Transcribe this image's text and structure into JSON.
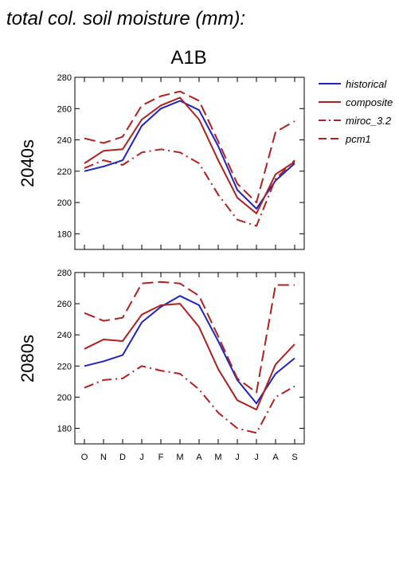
{
  "title": "total col. soil moisture (mm):",
  "scenario": "A1B",
  "colors": {
    "historical": "#2222bb",
    "models": "#aa2222"
  },
  "legend": [
    {
      "key": "historical",
      "label": "historical",
      "style": "solid",
      "color": "#2222bb"
    },
    {
      "key": "composite",
      "label": "composite",
      "style": "solid",
      "color": "#aa2222"
    },
    {
      "key": "miroc",
      "label": "miroc_3.2",
      "style": "dashdot",
      "color": "#aa2222"
    },
    {
      "key": "pcm1",
      "label": "pcm1",
      "style": "dashed",
      "color": "#aa2222"
    }
  ],
  "chart_data": [
    {
      "type": "line",
      "row_label": "2040s",
      "x": [
        "O",
        "N",
        "D",
        "J",
        "F",
        "M",
        "A",
        "M",
        "J",
        "J",
        "A",
        "S"
      ],
      "ylim": [
        170,
        280
      ],
      "yticks": [
        180,
        200,
        220,
        240,
        260,
        280
      ],
      "series": [
        {
          "name": "historical",
          "values": [
            220,
            223,
            227,
            249,
            260,
            265,
            259,
            236,
            208,
            196,
            214,
            225
          ]
        },
        {
          "name": "composite",
          "values": [
            225,
            233,
            234,
            253,
            262,
            267,
            253,
            227,
            203,
            193,
            218,
            226
          ]
        },
        {
          "name": "miroc_3.2",
          "values": [
            222,
            227,
            224,
            232,
            234,
            232,
            225,
            205,
            189,
            185,
            215,
            227
          ]
        },
        {
          "name": "pcm1",
          "values": [
            241,
            238,
            242,
            262,
            268,
            271,
            265,
            239,
            212,
            200,
            245,
            252
          ]
        }
      ]
    },
    {
      "type": "line",
      "row_label": "2080s",
      "x": [
        "O",
        "N",
        "D",
        "J",
        "F",
        "M",
        "A",
        "M",
        "J",
        "J",
        "A",
        "S"
      ],
      "ylim": [
        170,
        280
      ],
      "yticks": [
        180,
        200,
        220,
        240,
        260,
        280
      ],
      "series": [
        {
          "name": "historical",
          "values": [
            220,
            223,
            227,
            248,
            258,
            265,
            259,
            236,
            211,
            196,
            215,
            225
          ]
        },
        {
          "name": "composite",
          "values": [
            231,
            237,
            236,
            253,
            259,
            260,
            245,
            218,
            198,
            192,
            221,
            234
          ]
        },
        {
          "name": "miroc_3.2",
          "values": [
            206,
            211,
            212,
            220,
            217,
            215,
            205,
            190,
            180,
            177,
            200,
            207
          ]
        },
        {
          "name": "pcm1",
          "values": [
            254,
            249,
            251,
            273,
            274,
            273,
            265,
            239,
            212,
            203,
            272,
            272
          ]
        }
      ]
    }
  ]
}
